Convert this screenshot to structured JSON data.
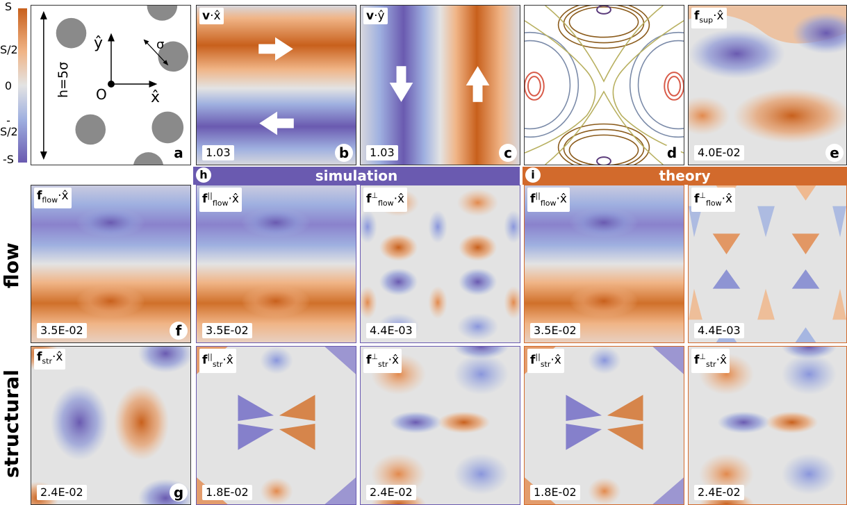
{
  "colorbar": {
    "ticks": [
      "S",
      "S/2",
      "0",
      "-S/2",
      "-S"
    ],
    "colors": {
      "pos": "#c8601c",
      "neg": "#6a5ab0",
      "zero": "#e3e3e3"
    }
  },
  "panel_a": {
    "letter": "a",
    "h_label": "h=5σ",
    "y_label": "ŷ",
    "x_label": "x̂",
    "origin_label": "O",
    "sigma_label": "σ"
  },
  "panel_b": {
    "title_vec": "v",
    "title_dir": "·x̂",
    "value": "1.03",
    "letter": "b"
  },
  "panel_c": {
    "title_vec": "v",
    "title_dir": "·ŷ",
    "value": "1.03",
    "letter": "c"
  },
  "panel_d": {
    "letter": "d"
  },
  "panel_e": {
    "title_vec": "f",
    "title_sub": "sup",
    "title_dir": "·x̂",
    "value": "4.0E-02",
    "letter": "e"
  },
  "banners": {
    "simulation": {
      "letter": "h",
      "text": "simulation",
      "color": "#6a5ab0"
    },
    "theory": {
      "letter": "i",
      "text": "theory",
      "color": "#d26a2c"
    }
  },
  "rows": {
    "flow": "flow",
    "structural": "structural"
  },
  "flow_row": [
    {
      "vec": "f",
      "sup": "",
      "sub": "flow",
      "dir": "·x̂",
      "value": "3.5E-02",
      "letter": "f"
    },
    {
      "vec": "f",
      "sup": "||",
      "sub": "flow",
      "dir": "·x̂",
      "value": "3.5E-02",
      "letter": ""
    },
    {
      "vec": "f",
      "sup": "⊥",
      "sub": "flow",
      "dir": "·x̂",
      "value": "4.4E-03",
      "letter": ""
    },
    {
      "vec": "f",
      "sup": "||",
      "sub": "flow",
      "dir": "·x̂",
      "value": "3.5E-02",
      "letter": ""
    },
    {
      "vec": "f",
      "sup": "⊥",
      "sub": "flow",
      "dir": "·x̂",
      "value": "4.4E-03",
      "letter": ""
    }
  ],
  "structural_row": [
    {
      "vec": "f",
      "sup": "",
      "sub": "str",
      "dir": "·x̂",
      "value": "2.4E-02",
      "letter": "g"
    },
    {
      "vec": "f",
      "sup": "||",
      "sub": "str",
      "dir": "·x̂",
      "value": "1.8E-02",
      "letter": ""
    },
    {
      "vec": "f",
      "sup": "⊥",
      "sub": "str",
      "dir": "·x̂",
      "value": "2.4E-02",
      "letter": ""
    },
    {
      "vec": "f",
      "sup": "||",
      "sub": "str",
      "dir": "·x̂",
      "value": "1.8E-02",
      "letter": ""
    },
    {
      "vec": "f",
      "sup": "⊥",
      "sub": "str",
      "dir": "·x̂",
      "value": "2.4E-02",
      "letter": ""
    }
  ]
}
